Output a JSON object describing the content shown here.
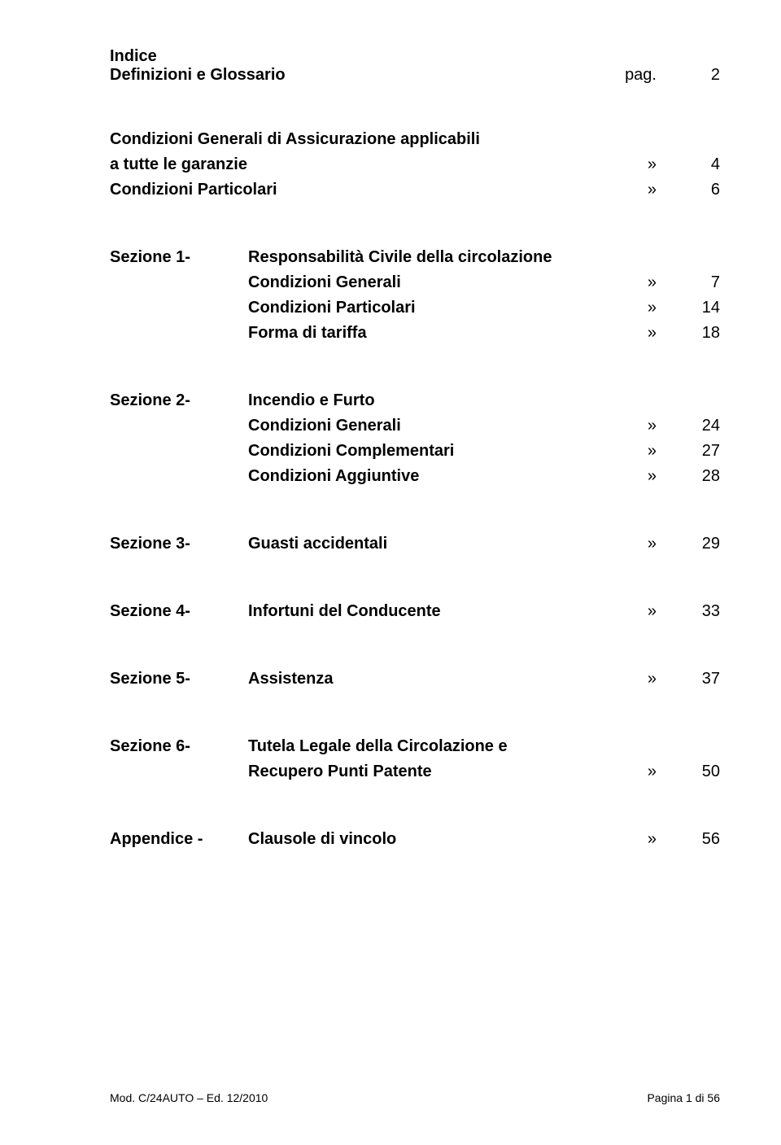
{
  "header": {
    "title1": "Indice",
    "title2": "Definizioni e Glossario",
    "pag_label": "pag.",
    "pag_num": "2"
  },
  "block1": {
    "row1": {
      "section": "",
      "desc": "Condizioni Generali di Assicurazione applicabili",
      "q": "",
      "num": ""
    },
    "row2": {
      "section": "",
      "desc": "a tutte le garanzie",
      "q": "»",
      "num": "4"
    },
    "row3": {
      "section": "",
      "desc": "Condizioni Particolari",
      "q": "»",
      "num": "6"
    }
  },
  "block2": {
    "row1": {
      "section": "Sezione 1-",
      "desc": "Responsabilità Civile della circolazione",
      "q": "",
      "num": ""
    },
    "row2": {
      "section": "",
      "desc": "Condizioni Generali",
      "q": "»",
      "num": "7"
    },
    "row3": {
      "section": "",
      "desc": "Condizioni Particolari",
      "q": "»",
      "num": "14"
    },
    "row4": {
      "section": "",
      "desc": "Forma di tariffa",
      "q": "»",
      "num": "18"
    }
  },
  "block3": {
    "row1": {
      "section": "Sezione 2-",
      "desc": "Incendio e Furto",
      "q": "",
      "num": ""
    },
    "row2": {
      "section": "",
      "desc": "Condizioni Generali",
      "q": "»",
      "num": "24"
    },
    "row3": {
      "section": "",
      "desc": "Condizioni Complementari",
      "q": "»",
      "num": "27"
    },
    "row4": {
      "section": "",
      "desc": "Condizioni Aggiuntive",
      "q": "»",
      "num": "28"
    }
  },
  "block4": {
    "row1": {
      "section": "Sezione 3-",
      "desc": "Guasti accidentali",
      "q": "»",
      "num": "29"
    }
  },
  "block5": {
    "row1": {
      "section": "Sezione 4-",
      "desc": "Infortuni del Conducente",
      "q": "»",
      "num": "33"
    }
  },
  "block6": {
    "row1": {
      "section": "Sezione 5-",
      "desc": "Assistenza",
      "q": "»",
      "num": "37"
    }
  },
  "block7": {
    "row1": {
      "section": "Sezione 6-",
      "desc": "Tutela Legale della Circolazione e",
      "q": "",
      "num": ""
    },
    "row2": {
      "section": "",
      "desc": "Recupero Punti Patente",
      "q": "»",
      "num": "50"
    }
  },
  "block8": {
    "row1": {
      "section": "Appendice -",
      "desc": "Clausole di vincolo",
      "q": "»",
      "num": "56"
    }
  },
  "footer": {
    "left": "Mod. C/24AUTO – Ed. 12/2010",
    "right": "Pagina 1 di 56"
  }
}
